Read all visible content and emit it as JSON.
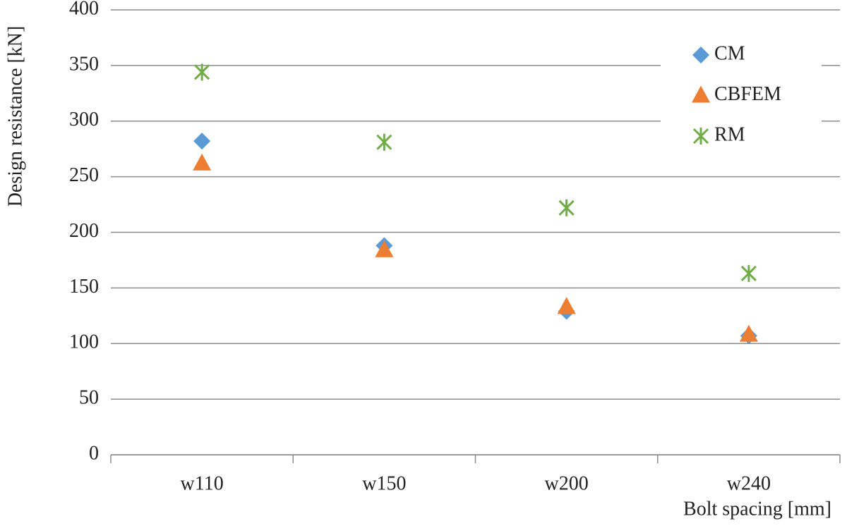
{
  "chart_data": {
    "type": "scatter",
    "y_label": "Design resistance [kN]",
    "x_label": "Bolt spacing [mm]",
    "categories": [
      "w110",
      "w150",
      "w200",
      "w240"
    ],
    "series": [
      {
        "name": "CM",
        "color": "#5b9bd5",
        "marker": "diamond",
        "values": [
          282,
          188,
          129,
          107
        ]
      },
      {
        "name": "CBFEM",
        "color": "#ed7d31",
        "marker": "triangle",
        "values": [
          262,
          184,
          133,
          108
        ]
      },
      {
        "name": "RM",
        "color": "#70ad47",
        "marker": "asterisk",
        "values": [
          344,
          281,
          222,
          163
        ]
      }
    ],
    "ylim": [
      0,
      400
    ],
    "yticks": [
      0,
      50,
      100,
      150,
      200,
      250,
      300,
      350,
      400
    ],
    "grid": true,
    "legend": "top-right"
  }
}
